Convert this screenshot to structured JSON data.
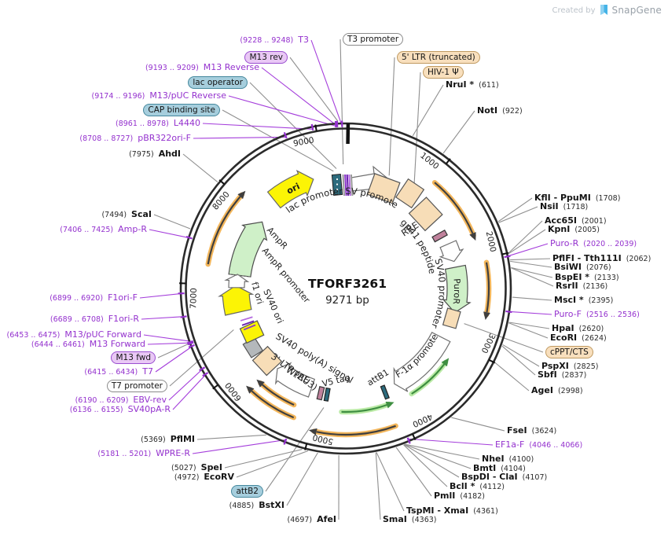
{
  "watermark": {
    "created_by": "Created by",
    "brand": "SnapGene"
  },
  "plasmid": {
    "name": "TFORF3261",
    "size": "9271 bp"
  },
  "tick_labels": [
    "1000",
    "2000",
    "3000",
    "4000",
    "5000",
    "6000",
    "7000",
    "8000",
    "9000"
  ],
  "colors": {
    "primer_purple": "#9431ce",
    "connector_gray": "#8f8f8f",
    "backbone_black": "#2b2b2b",
    "orf_orange": "#f2ae49",
    "orf_green": "#b2e89b",
    "feature_green": "#cff0c8",
    "feature_yellow": "#fcf405",
    "feature_tan": "#f7ddb7",
    "marker_teal": "#2c6b7d",
    "marker_mauve": "#c0829c"
  },
  "features": {
    "ori": "ori",
    "lac_promoter": "lac promoter",
    "rsv_promoter": "RSV promoter",
    "rre": "RRE",
    "gp41_peptide": "gp41 peptide",
    "sv40_promoter": "SV40 promoter",
    "puro_r": "PuroR",
    "ef1a_promoter": "EF-1α promoter",
    "attb1": "attB1",
    "v5_tag": "V5 tag",
    "wpre": "WPRE",
    "ltr3": "3' LTR (ΔU3)",
    "sv40_polya": "SV40 poly(A) signal",
    "sv40_ori": "SV40 ori",
    "f1_ori": "f1 ori",
    "ampr_promoter": "AmpR promoter",
    "ampr": "AmpR"
  },
  "callouts": [
    {
      "num": "(9228 .. 9248)",
      "name": "T3",
      "type": "primer"
    },
    {
      "name": "M13 rev",
      "type": "badge-purple"
    },
    {
      "num": "(9193 .. 9209)",
      "name": "M13 Reverse",
      "type": "primer"
    },
    {
      "name": "lac operator",
      "type": "badge-teal"
    },
    {
      "num": "(9174 .. 9196)",
      "name": "M13/pUC Reverse",
      "type": "primer"
    },
    {
      "name": "CAP binding site",
      "type": "badge-teal"
    },
    {
      "num": "(8961 .. 8978)",
      "name": "L4440",
      "type": "primer"
    },
    {
      "num": "(8708 .. 8727)",
      "name": "pBR322ori-F",
      "type": "primer"
    },
    {
      "num": "(7975)",
      "name": "AhdI",
      "type": "enzyme"
    },
    {
      "name": "T3 promoter",
      "type": "badge-white"
    },
    {
      "name": "5' LTR (truncated)",
      "type": "badge-tan"
    },
    {
      "name": "HIV-1 Ψ",
      "type": "badge-tan"
    },
    {
      "name": "NruI *",
      "num": "(611)",
      "type": "enzyme"
    },
    {
      "name": "NotI",
      "num": "(922)",
      "type": "enzyme"
    },
    {
      "name": "KflI - PpuMI",
      "num": "(1708)",
      "type": "enzyme"
    },
    {
      "name": "NsiI",
      "num": "(1718)",
      "type": "enzyme"
    },
    {
      "name": "Acc65I",
      "num": "(2001)",
      "type": "enzyme"
    },
    {
      "name": "KpnI",
      "num": "(2005)",
      "type": "enzyme"
    },
    {
      "name": "Puro-R",
      "num": "(2020 .. 2039)",
      "type": "primer"
    },
    {
      "name": "PflFI - Tth111I",
      "num": "(2062)",
      "type": "enzyme"
    },
    {
      "name": "BsiWI",
      "num": "(2076)",
      "type": "enzyme"
    },
    {
      "name": "BspEI *",
      "num": "(2133)",
      "type": "enzyme"
    },
    {
      "name": "RsrII",
      "num": "(2136)",
      "type": "enzyme"
    },
    {
      "name": "MscI *",
      "num": "(2395)",
      "type": "enzyme"
    },
    {
      "name": "Puro-F",
      "num": "(2516 .. 2536)",
      "type": "primer"
    },
    {
      "name": "HpaI",
      "num": "(2620)",
      "type": "enzyme"
    },
    {
      "name": "EcoRI",
      "num": "(2624)",
      "type": "enzyme"
    },
    {
      "name": "cPPT/CTS",
      "type": "badge-tan"
    },
    {
      "name": "PspXI",
      "num": "(2825)",
      "type": "enzyme"
    },
    {
      "name": "SbfI",
      "num": "(2837)",
      "type": "enzyme"
    },
    {
      "name": "AgeI",
      "num": "(2998)",
      "type": "enzyme"
    },
    {
      "name": "FseI",
      "num": "(3624)",
      "type": "enzyme"
    },
    {
      "name": "EF1a-F",
      "num": "(4046 .. 4066)",
      "type": "primer"
    },
    {
      "name": "NheI",
      "num": "(4100)",
      "type": "enzyme"
    },
    {
      "name": "BmtI",
      "num": "(4104)",
      "type": "enzyme"
    },
    {
      "name": "BspDI - ClaI",
      "num": "(4107)",
      "type": "enzyme"
    },
    {
      "name": "BclI *",
      "num": "(4112)",
      "type": "enzyme"
    },
    {
      "name": "PmlI",
      "num": "(4182)",
      "type": "enzyme"
    },
    {
      "name": "TspMI - XmaI",
      "num": "(4361)",
      "type": "enzyme"
    },
    {
      "name": "SmaI",
      "num": "(4363)",
      "type": "enzyme"
    },
    {
      "num": "(4697)",
      "name": "AfeI",
      "type": "enzyme"
    },
    {
      "num": "(4885)",
      "name": "BstXI",
      "type": "enzyme"
    },
    {
      "name": "attB2",
      "type": "badge-teal"
    },
    {
      "num": "(4972)",
      "name": "EcoRV",
      "type": "enzyme"
    },
    {
      "num": "(5027)",
      "name": "SpeI",
      "type": "enzyme"
    },
    {
      "num": "(5181 .. 5201)",
      "name": "WPRE-R",
      "type": "primer"
    },
    {
      "num": "(5369)",
      "name": "PflMI",
      "type": "enzyme"
    },
    {
      "num": "(6136 .. 6155)",
      "name": "SV40pA-R",
      "type": "primer"
    },
    {
      "num": "(6190 .. 6209)",
      "name": "EBV-rev",
      "type": "primer"
    },
    {
      "name": "T7 promoter",
      "type": "badge-white"
    },
    {
      "num": "(6415 .. 6434)",
      "name": "T7",
      "type": "primer"
    },
    {
      "name": "M13 fwd",
      "type": "badge-purple"
    },
    {
      "num": "(6444 .. 6461)",
      "name": "M13 Forward",
      "type": "primer"
    },
    {
      "num": "(6453 .. 6475)",
      "name": "M13/pUC Forward",
      "type": "primer"
    },
    {
      "num": "(6689 .. 6708)",
      "name": "F1ori-R",
      "type": "primer"
    },
    {
      "num": "(6899 .. 6920)",
      "name": "F1ori-F",
      "type": "primer"
    },
    {
      "num": "(7406 .. 7425)",
      "name": "Amp-R",
      "type": "primer"
    },
    {
      "num": "(7494)",
      "name": "ScaI",
      "type": "enzyme"
    }
  ]
}
